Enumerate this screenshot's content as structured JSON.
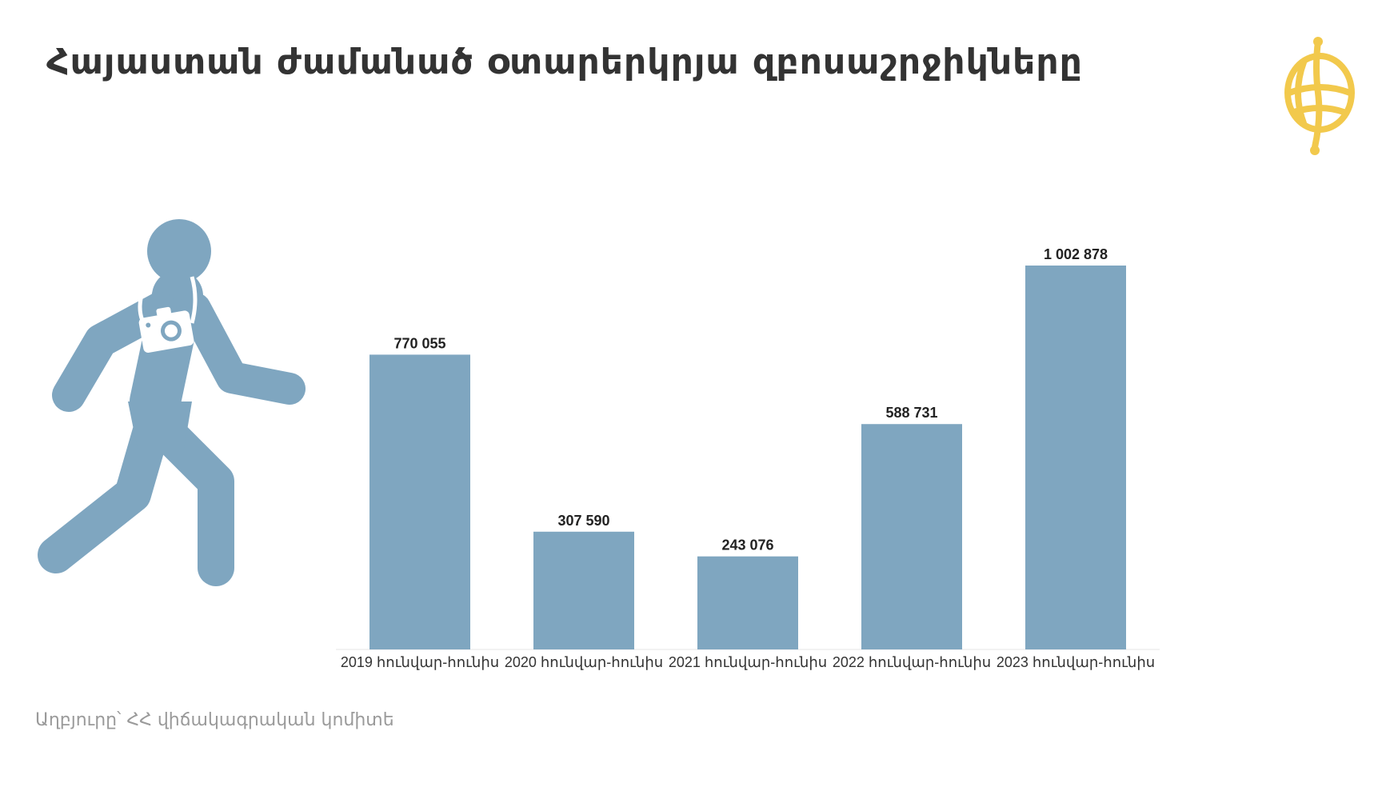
{
  "title": "Հայաստան ժամանած օտարերկրյա զբոսաշրջիկները",
  "source": "Աղբյուրը՝ ՀՀ վիճակագրական կոմիտե",
  "colors": {
    "bar": "#7fa6c0",
    "icon": "#7fa6c0",
    "logo": "#f2c94c",
    "title": "#333333",
    "source": "#9a9a9a"
  },
  "icons": {
    "walker": "tourist-with-camera-icon",
    "logo": "globe-logo-icon"
  },
  "chart_data": {
    "type": "bar",
    "title": "Հայաստան ժամանած օտարերկրյա զբոսաշրջիկները",
    "xlabel": "",
    "ylabel": "",
    "ylim": [
      0,
      1002878
    ],
    "grid": false,
    "legend": "none",
    "categories": [
      "2019 հունվար-հունիս",
      "2020 հունվար-հունիս",
      "2021 հունվար-հունիս",
      "2022 հունվար-հունիս",
      "2023 հունվար-հունիս"
    ],
    "values": [
      770055,
      307590,
      243076,
      588731,
      1002878
    ],
    "value_labels": [
      "770 055",
      "307 590",
      "243 076",
      "588 731",
      "1 002 878"
    ]
  }
}
